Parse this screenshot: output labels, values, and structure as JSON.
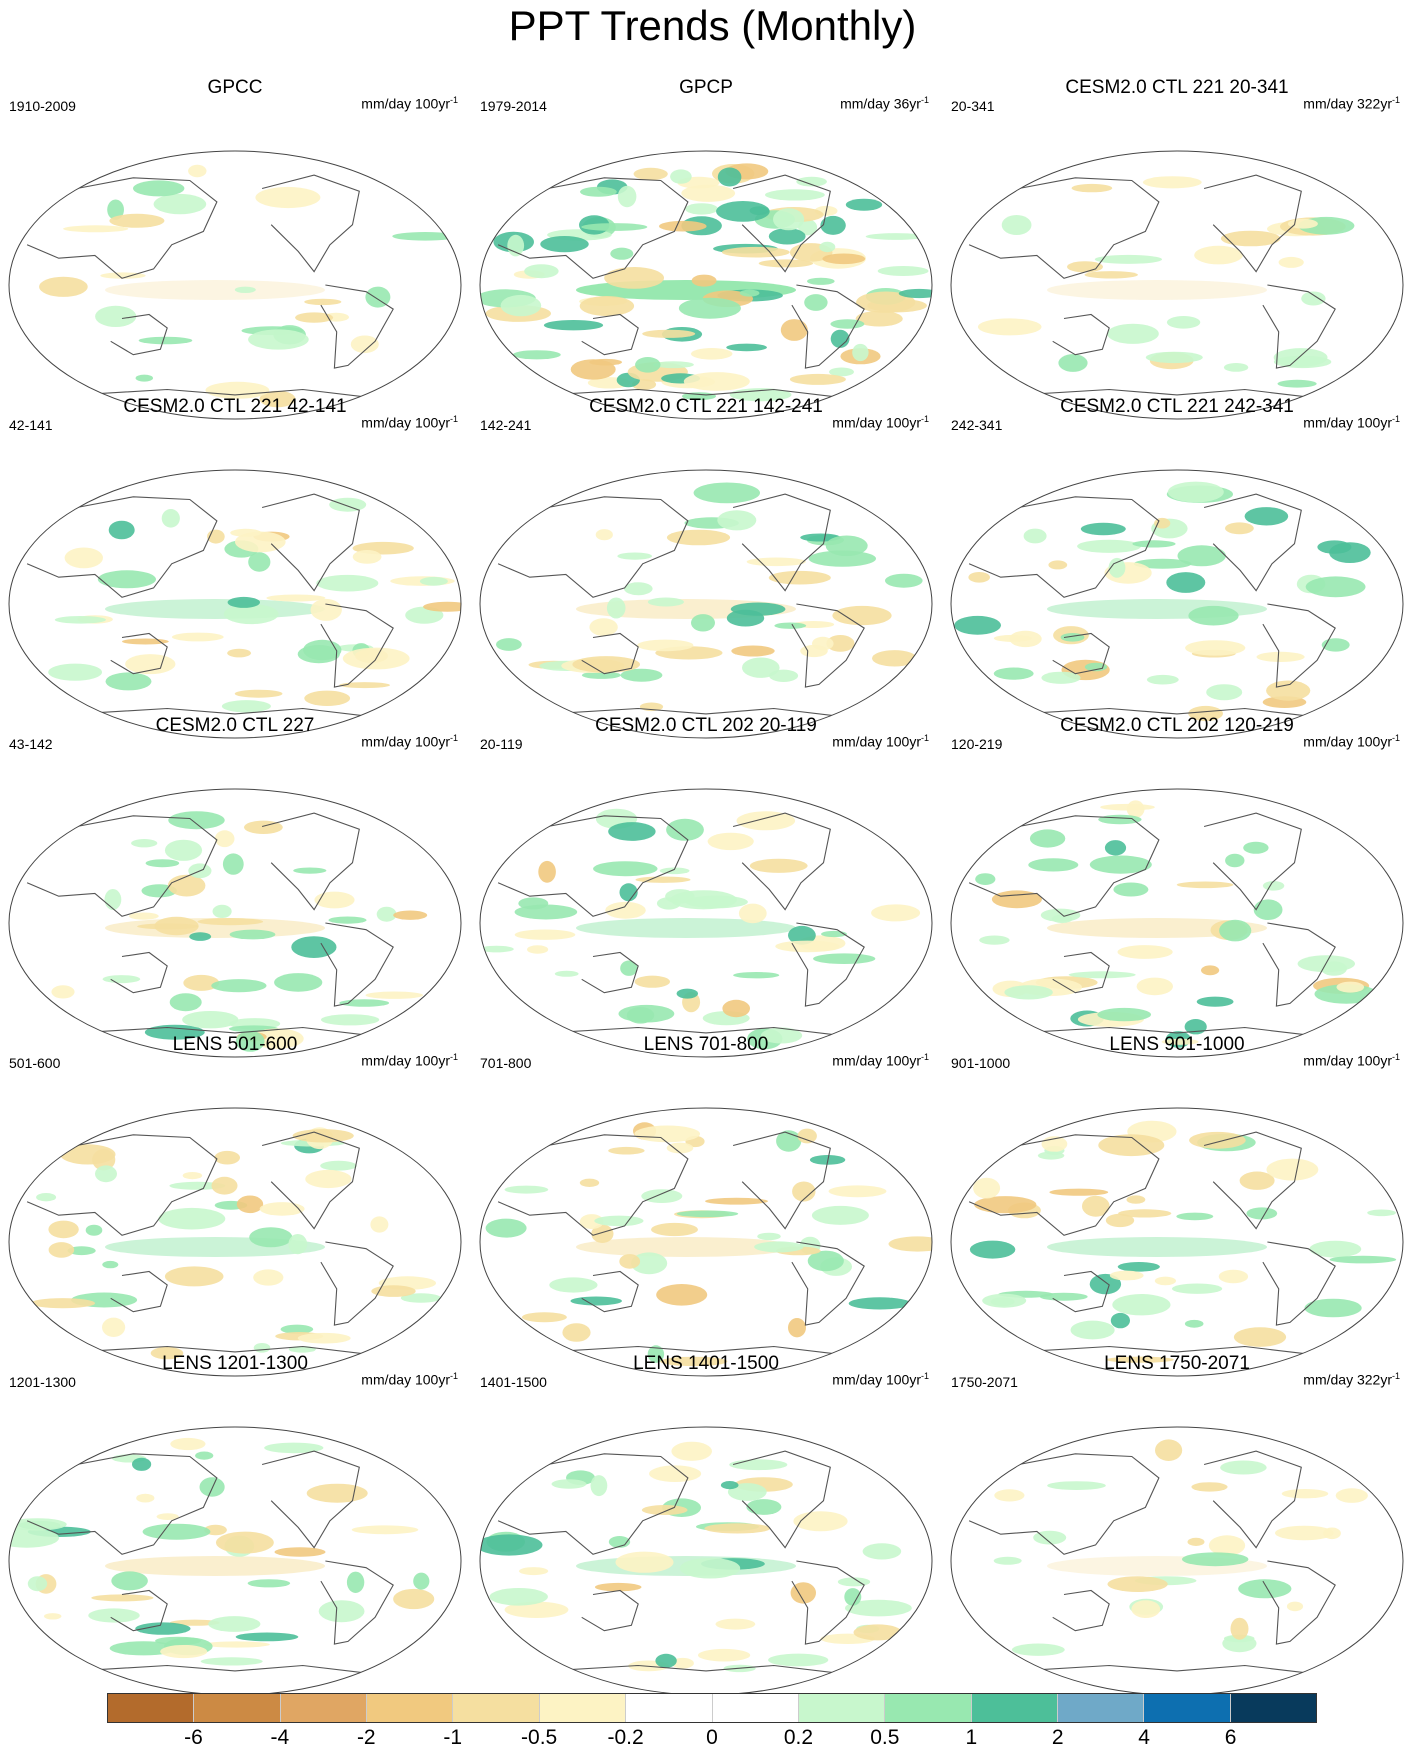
{
  "title": "PPT Trends (Monthly)",
  "panels": [
    {
      "title": "GPCC",
      "label": "1910-2009",
      "units": "mm/day 100yr",
      "units_sup": "-1"
    },
    {
      "title": "GPCP",
      "label": "1979-2014",
      "units": "mm/day 36yr",
      "units_sup": "-1"
    },
    {
      "title": "CESM2.0 CTL 221 20-341",
      "label": "20-341",
      "units": "mm/day 322yr",
      "units_sup": "-1"
    },
    {
      "title": "CESM2.0 CTL 221 42-141",
      "label": "42-141",
      "units": "mm/day 100yr",
      "units_sup": "-1"
    },
    {
      "title": "CESM2.0 CTL 221 142-241",
      "label": "142-241",
      "units": "mm/day 100yr",
      "units_sup": "-1"
    },
    {
      "title": "CESM2.0 CTL 221 242-341",
      "label": "242-341",
      "units": "mm/day 100yr",
      "units_sup": "-1"
    },
    {
      "title": "CESM2.0 CTL 227",
      "label": "43-142",
      "units": "mm/day 100yr",
      "units_sup": "-1"
    },
    {
      "title": "CESM2.0 CTL 202 20-119",
      "label": "20-119",
      "units": "mm/day 100yr",
      "units_sup": "-1"
    },
    {
      "title": "CESM2.0 CTL 202 120-219",
      "label": "120-219",
      "units": "mm/day 100yr",
      "units_sup": "-1"
    },
    {
      "title": "LENS 501-600",
      "label": "501-600",
      "units": "mm/day 100yr",
      "units_sup": "-1"
    },
    {
      "title": "LENS 701-800",
      "label": "701-800",
      "units": "mm/day 100yr",
      "units_sup": "-1"
    },
    {
      "title": "LENS 901-1000",
      "label": "901-1000",
      "units": "mm/day 100yr",
      "units_sup": "-1"
    },
    {
      "title": "LENS 1201-1300",
      "label": "1201-1300",
      "units": "mm/day 100yr",
      "units_sup": "-1"
    },
    {
      "title": "LENS 1401-1500",
      "label": "1401-1500",
      "units": "mm/day 100yr",
      "units_sup": "-1"
    },
    {
      "title": "LENS 1750-2071",
      "label": "1750-2071",
      "units": "mm/day 322yr",
      "units_sup": "-1"
    }
  ],
  "colorbar": {
    "colors": [
      "#b36b2c",
      "#cc8a44",
      "#e0a663",
      "#f1c97f",
      "#f5dfa0",
      "#fdf3c4",
      "#ffffff",
      "#ffffff",
      "#c8f7cd",
      "#98e8b0",
      "#4dbf99",
      "#6fa9c8",
      "#0d6fb0",
      "#083a5c"
    ],
    "labels": [
      "-6",
      "-4",
      "-2",
      "-1",
      "-0.5",
      "-0.2",
      "0",
      "0.2",
      "0.5",
      "1",
      "2",
      "4",
      "6"
    ]
  }
}
